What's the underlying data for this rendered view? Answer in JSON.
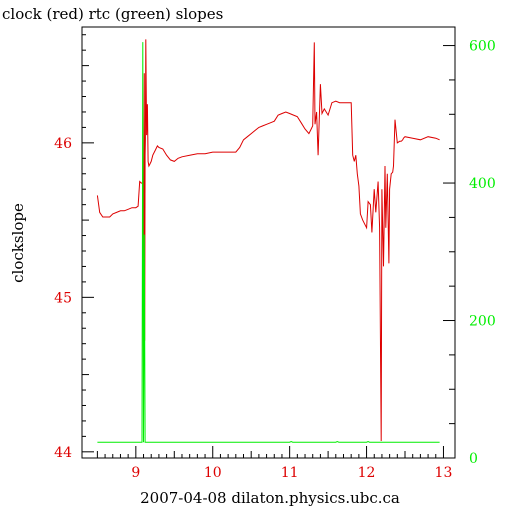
{
  "chart_data": {
    "type": "line",
    "title": "clock (red) rtc (green) slopes",
    "xlabel": "2007-04-08 dilaton.physics.ubc.ca",
    "ylabel": "clockslope",
    "xlim": [
      8.3,
      13.15
    ],
    "ylim_left": [
      43.96,
      46.75
    ],
    "ylim_right": [
      0,
      627
    ],
    "grid": false,
    "x_ticks": [
      "9",
      "10",
      "11",
      "12",
      "13"
    ],
    "y_left_ticks": [
      "44",
      "45",
      "46"
    ],
    "y_right_ticks": [
      "0",
      "200",
      "400",
      "600"
    ],
    "colors": {
      "clock": "#dd0000",
      "rtc": "#00ee00",
      "axis": "#000000"
    },
    "series": [
      {
        "name": "clock",
        "axis": "left",
        "color": "#dd0000",
        "x": [
          8.5,
          8.53,
          8.57,
          8.62,
          8.66,
          8.7,
          8.75,
          8.8,
          8.85,
          8.9,
          8.95,
          9.0,
          9.03,
          9.05,
          9.07,
          9.08,
          9.09,
          9.1,
          9.11,
          9.115,
          9.12,
          9.125,
          9.13,
          9.14,
          9.15,
          9.16,
          9.17,
          9.18,
          9.2,
          9.22,
          9.25,
          9.28,
          9.3,
          9.35,
          9.4,
          9.45,
          9.5,
          9.55,
          9.6,
          9.7,
          9.8,
          9.9,
          10.0,
          10.1,
          10.2,
          10.3,
          10.35,
          10.4,
          10.45,
          10.5,
          10.55,
          10.6,
          10.65,
          10.7,
          10.75,
          10.8,
          10.85,
          10.9,
          10.95,
          11.0,
          11.05,
          11.1,
          11.15,
          11.2,
          11.25,
          11.28,
          11.3,
          11.32,
          11.33,
          11.35,
          11.37,
          11.38,
          11.4,
          11.42,
          11.45,
          11.5,
          11.55,
          11.6,
          11.65,
          11.7,
          11.75,
          11.8,
          11.82,
          11.84,
          11.86,
          11.88,
          11.9,
          11.92,
          11.95,
          11.98,
          12.0,
          12.02,
          12.05,
          12.07,
          12.1,
          12.12,
          12.15,
          12.17,
          12.19,
          12.2,
          12.22,
          12.24,
          12.25,
          12.27,
          12.29,
          12.3,
          12.32,
          12.34,
          12.35,
          12.37,
          12.4,
          12.43,
          12.45,
          12.47,
          12.48,
          12.5,
          12.6,
          12.7,
          12.8,
          12.9,
          12.95
        ],
        "values": [
          45.66,
          45.55,
          45.52,
          45.52,
          45.52,
          45.54,
          45.55,
          45.56,
          45.56,
          45.57,
          45.58,
          45.58,
          45.59,
          45.75,
          45.74,
          45.74,
          45.73,
          44.58,
          46.45,
          44.72,
          45.92,
          46.02,
          46.67,
          46.05,
          46.25,
          45.88,
          45.85,
          45.86,
          45.88,
          45.92,
          45.95,
          45.98,
          45.97,
          45.96,
          45.92,
          45.89,
          45.88,
          45.9,
          45.91,
          45.92,
          45.93,
          45.93,
          45.94,
          45.94,
          45.94,
          45.94,
          45.97,
          46.02,
          46.04,
          46.06,
          46.08,
          46.1,
          46.11,
          46.12,
          46.13,
          46.14,
          46.18,
          46.19,
          46.2,
          46.19,
          46.18,
          46.17,
          46.13,
          46.09,
          46.06,
          46.09,
          46.11,
          46.65,
          46.12,
          46.2,
          45.92,
          46.08,
          46.38,
          46.19,
          46.22,
          46.18,
          46.26,
          46.27,
          46.26,
          46.26,
          46.26,
          46.26,
          45.92,
          45.88,
          45.92,
          45.8,
          45.72,
          45.54,
          45.5,
          45.47,
          45.45,
          45.62,
          45.6,
          45.42,
          45.7,
          45.55,
          45.75,
          45.45,
          44.07,
          45.7,
          45.2,
          45.85,
          45.45,
          45.8,
          45.22,
          45.7,
          45.8,
          45.81,
          45.85,
          46.15,
          46.0,
          46.01,
          46.01,
          46.02,
          46.03,
          46.04,
          46.03,
          46.02,
          46.04,
          46.03,
          46.02
        ]
      },
      {
        "name": "rtc",
        "axis": "right",
        "color": "#00ee00",
        "x": [
          8.5,
          9.07,
          9.08,
          9.09,
          9.1,
          9.11,
          9.12,
          9.13,
          11.0,
          11.02,
          11.04,
          11.6,
          11.62,
          11.64,
          12.0,
          12.02,
          12.04,
          12.95
        ],
        "values": [
          23,
          23,
          23,
          605,
          23,
          325,
          23,
          23,
          23,
          24,
          23,
          23,
          24,
          23,
          23,
          24,
          23,
          23
        ]
      }
    ]
  }
}
